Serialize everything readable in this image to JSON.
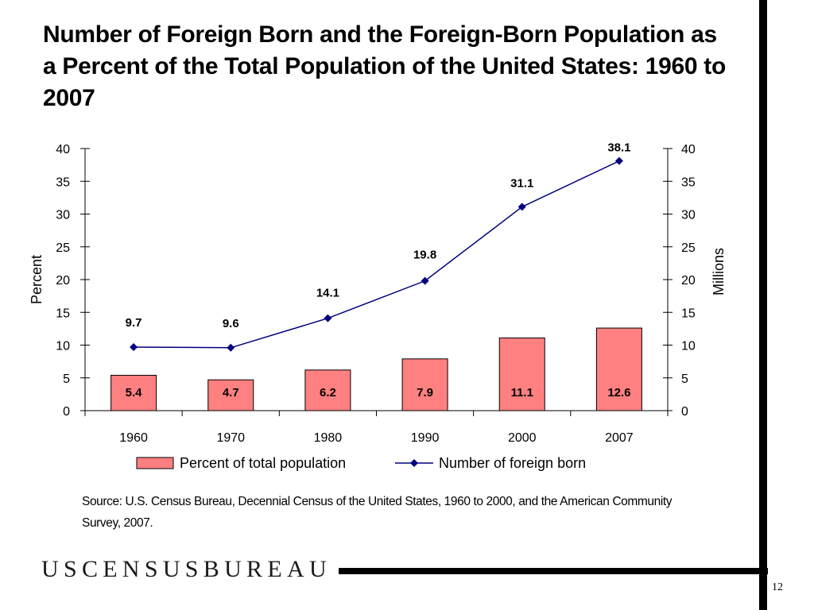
{
  "slide": {
    "title": "Number of Foreign Born and the Foreign-Born Population as a Percent of the Total Population of the United States: 1960 to 2007",
    "source": "Source: U.S. Census Bureau, Decennial Census of the United States, 1960 to 2000, and the American Community Survey, 2007.",
    "logo_text": "USCENSUSBUREAU",
    "page_number": "12"
  },
  "chart_data": {
    "type": "bar",
    "categories": [
      "1960",
      "1970",
      "1980",
      "1990",
      "2000",
      "2007"
    ],
    "series": [
      {
        "name": "Percent of total population",
        "type": "bar",
        "axis": "left",
        "color": "#ff8080",
        "values": [
          5.4,
          4.7,
          6.2,
          7.9,
          11.1,
          12.6
        ],
        "labels": [
          "5.4",
          "4.7",
          "6.2",
          "7.9",
          "11.1",
          "12.6"
        ]
      },
      {
        "name": "Number of foreign born",
        "type": "line",
        "axis": "right",
        "color": "#000080",
        "values": [
          9.7,
          9.6,
          14.1,
          19.8,
          31.1,
          38.1
        ],
        "labels": [
          "9.7",
          "9.6",
          "14.1",
          "19.8",
          "31.1",
          "38.1"
        ]
      }
    ],
    "y_left": {
      "label": "Percent",
      "ylim": [
        0,
        40
      ],
      "ticks": [
        "0",
        "5",
        "10",
        "15",
        "20",
        "25",
        "30",
        "35",
        "40"
      ]
    },
    "y_right": {
      "label": "Millions",
      "ylim": [
        0,
        40
      ],
      "ticks": [
        "0",
        "5",
        "10",
        "15",
        "20",
        "25",
        "30",
        "35",
        "40"
      ]
    },
    "grid": false,
    "legend_position": "bottom"
  }
}
